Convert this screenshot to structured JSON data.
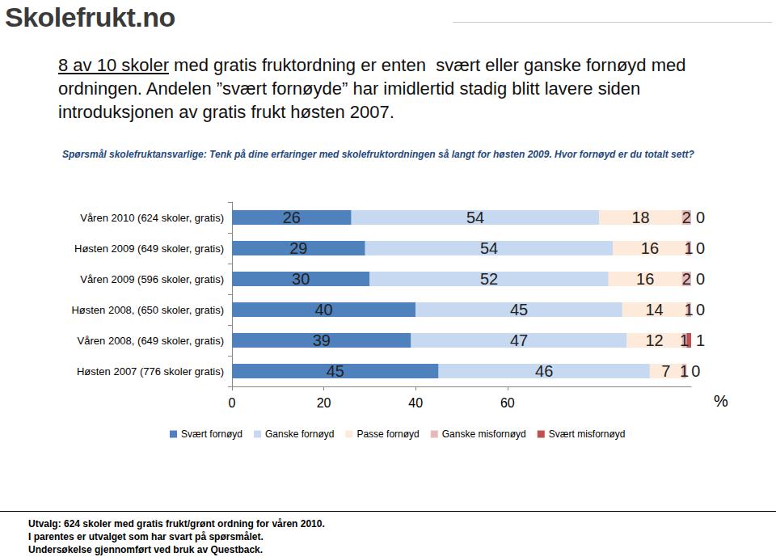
{
  "page": {
    "logo": "Skolefrukt.no",
    "heading": [
      [
        {
          "text": "8 av 10 skoler",
          "underline": true
        },
        {
          "text": " med gratis fruktordning er enten  svært eller ganske fornøyd med"
        }
      ],
      [
        {
          "text": "ordningen. Andelen ”svært fornøyde” har imidlertid stadig blitt lavere siden"
        }
      ],
      [
        {
          "text": "introduksjonen av gratis frukt høsten 2007."
        }
      ]
    ],
    "footer": [
      "Utvalg: 624 skoler med gratis frukt/grønt ordning for våren 2010.",
      "I parentes er utvalget som har svart på spørsmålet.",
      "Undersøkelse gjennomført ved bruk av Questback."
    ]
  },
  "chart_data": {
    "type": "bar",
    "orientation": "horizontal",
    "stacked": true,
    "data_labels": true,
    "grid": false,
    "legend": "bottom",
    "title": "Spørsmål skolefruktansvarlige: Tenk på dine erfaringer med skolefruktordningen så langt for høsten 2009. Hvor fornøyd er du totalt sett?",
    "x_label": "%",
    "categories": [
      "Våren 2010 (624 skoler, gratis)",
      "Høsten 2009 (649 skoler, gratis)",
      "Våren 2009 (596 skoler, gratis)",
      "Høsten 2008, (650 skoler, gratis)",
      "Våren 2008, (649 skoler, gratis)",
      "Høsten 2007 (776 skoler gratis)"
    ],
    "xlim": [
      0,
      100
    ],
    "xticks": [
      0,
      20,
      40,
      60
    ],
    "series": [
      {
        "name": "Svært fornøyd",
        "color": "#4F81BD",
        "values": [
          26,
          29,
          30,
          40,
          39,
          45
        ]
      },
      {
        "name": "Ganske fornøyd",
        "color": "#C6D9F1",
        "values": [
          54,
          54,
          52,
          45,
          47,
          46
        ]
      },
      {
        "name": "Passe fornøyd",
        "color": "#FDEADA",
        "values": [
          18,
          16,
          16,
          14,
          12,
          7
        ]
      },
      {
        "name": "Ganske misfornøyd",
        "color": "#E6B9B8",
        "values": [
          2,
          1,
          2,
          1,
          1,
          1
        ]
      },
      {
        "name": "Svært misfornøyd",
        "color": "#C0504D",
        "values": [
          0,
          0,
          0,
          0,
          1,
          0
        ]
      }
    ]
  }
}
